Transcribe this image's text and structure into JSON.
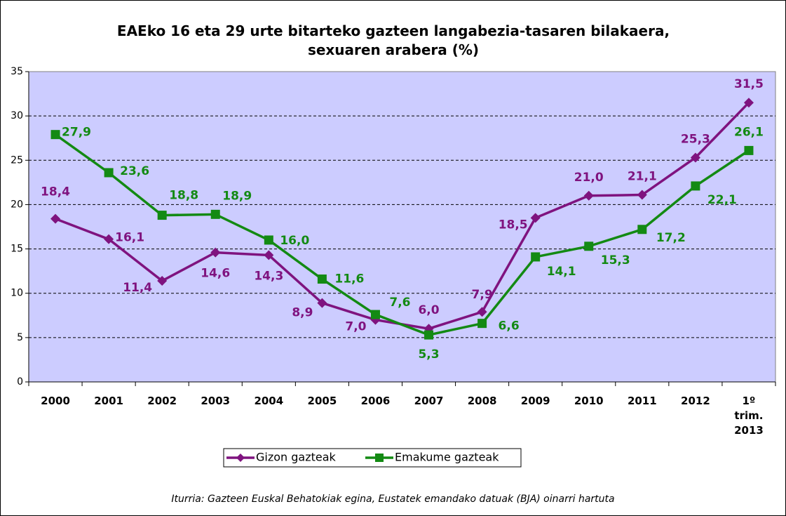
{
  "chart_data": {
    "type": "line",
    "title": "EAEko 16 eta 29 urte bitarteko gazteen langabezia-tasaren bilakaera, sexuaren arabera (%)",
    "categories": [
      "2000",
      "2001",
      "2002",
      "2003",
      "2004",
      "2005",
      "2006",
      "2007",
      "2008",
      "2009",
      "2010",
      "2011",
      "2012",
      "1º trim. 2013"
    ],
    "series": [
      {
        "name": "Gizon gazteak",
        "color": "#7f137f",
        "marker": "diamond",
        "values": [
          18.4,
          16.1,
          11.4,
          14.6,
          14.3,
          8.9,
          7.0,
          6.0,
          7.9,
          18.5,
          21.0,
          21.1,
          25.3,
          31.5
        ],
        "value_labels": [
          "18,4",
          "16,1",
          "11,4",
          "14,6",
          "14,3",
          "8,9",
          "7,0",
          "6,0",
          "7,9",
          "18,5",
          "21,0",
          "21,1",
          "25,3",
          "31,5"
        ]
      },
      {
        "name": "Emakume gazteak",
        "color": "#138a13",
        "marker": "square",
        "values": [
          27.9,
          23.6,
          18.8,
          18.9,
          16.0,
          11.6,
          7.6,
          5.3,
          6.6,
          14.1,
          15.3,
          17.2,
          22.1,
          26.1
        ],
        "value_labels": [
          "27,9",
          "23,6",
          "18,8",
          "18,9",
          "16,0",
          "11,6",
          "7,6",
          "5,3",
          "6,6",
          "14,1",
          "15,3",
          "17,2",
          "22,1",
          "26,1"
        ]
      }
    ],
    "ylim": [
      0,
      35
    ],
    "yticks": [
      0,
      5,
      10,
      15,
      20,
      25,
      30,
      35
    ],
    "grid": true,
    "legend": "bottom",
    "source": "Iturria: Gazteen Euskal Behatokiak egina, Eustatek emandako datuak (BJA) oinarri hartuta"
  }
}
